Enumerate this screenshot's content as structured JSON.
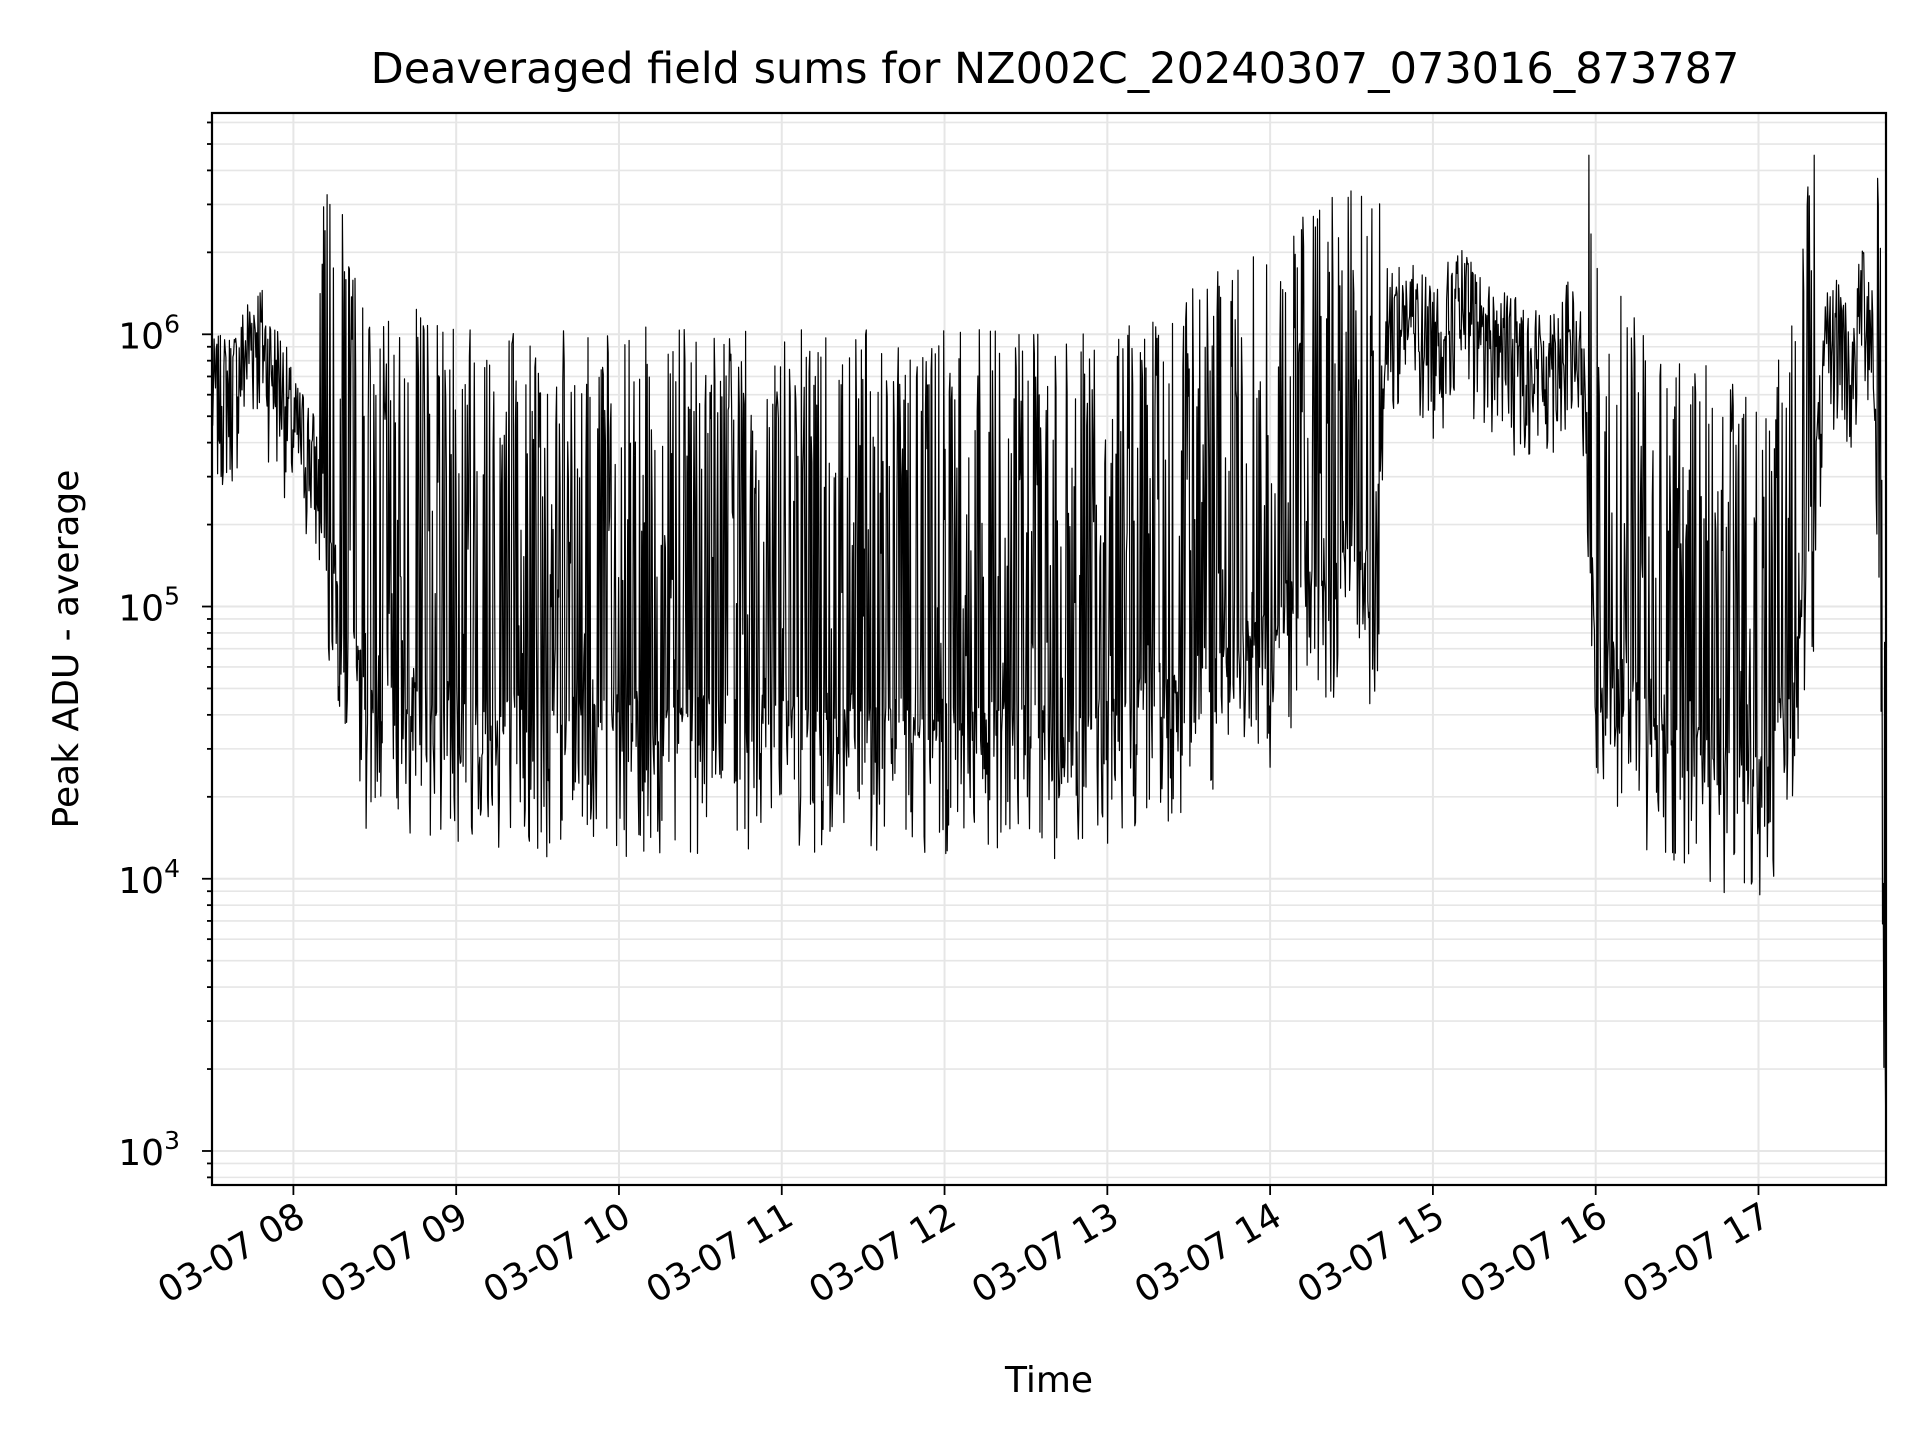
{
  "chart_data": {
    "type": "line",
    "title": "Deaveraged field sums for NZ002C_20240307_073016_873787",
    "xlabel": "Time",
    "ylabel": "Peak ADU - average",
    "xscale": "time",
    "yscale": "log",
    "xlim": [
      "03-07 07:30",
      "03-07 17:47"
    ],
    "ylim": [
      750,
      6500000
    ],
    "x_ticks": [
      "03-07 08",
      "03-07 09",
      "03-07 10",
      "03-07 11",
      "03-07 12",
      "03-07 13",
      "03-07 14",
      "03-07 15",
      "03-07 16",
      "03-07 17"
    ],
    "y_ticks": [
      {
        "base": "10",
        "exp": "3",
        "value": 1000
      },
      {
        "base": "10",
        "exp": "4",
        "value": 10000
      },
      {
        "base": "10",
        "exp": "5",
        "value": 100000
      },
      {
        "base": "10",
        "exp": "6",
        "value": 1000000
      }
    ],
    "grid": true,
    "legend": false,
    "line_color": "#000000",
    "grid_color": "#e6e6e6",
    "series": [
      {
        "x": [
          "07:30",
          "07:38",
          "07:46",
          "07:48",
          "07:52",
          "07:56",
          "08:00",
          "08:06",
          "08:12",
          "08:18",
          "08:24",
          "08:30",
          "08:45",
          "09:00",
          "09:30",
          "10:00",
          "10:20",
          "10:40",
          "11:00",
          "11:30",
          "12:00",
          "12:20",
          "12:40",
          "13:00",
          "13:20",
          "13:40",
          "14:00",
          "14:20",
          "14:40",
          "14:42",
          "14:50",
          "15:00",
          "15:10",
          "15:20",
          "15:30",
          "15:40",
          "15:50",
          "15:55",
          "16:00",
          "16:20",
          "16:40",
          "16:55",
          "17:00",
          "17:10",
          "17:15",
          "17:20",
          "17:25",
          "17:30",
          "17:35",
          "17:38",
          "17:42",
          "17:45",
          "17:47"
        ],
        "values": [
          550000,
          600000,
          1000000,
          900000,
          700000,
          600000,
          400000,
          350000,
          200000,
          110000,
          60000,
          40000,
          50000,
          45000,
          40000,
          40000,
          42000,
          40000,
          40000,
          40000,
          40000,
          40000,
          38000,
          40000,
          50000,
          65000,
          80000,
          130000,
          150000,
          1000000,
          1100000,
          900000,
          1200000,
          900000,
          800000,
          700000,
          900000,
          700000,
          80000,
          40000,
          30000,
          25000,
          25000,
          40000,
          80000,
          200000,
          800000,
          1000000,
          600000,
          1400000,
          1000000,
          100000,
          1000
        ]
      }
    ]
  }
}
